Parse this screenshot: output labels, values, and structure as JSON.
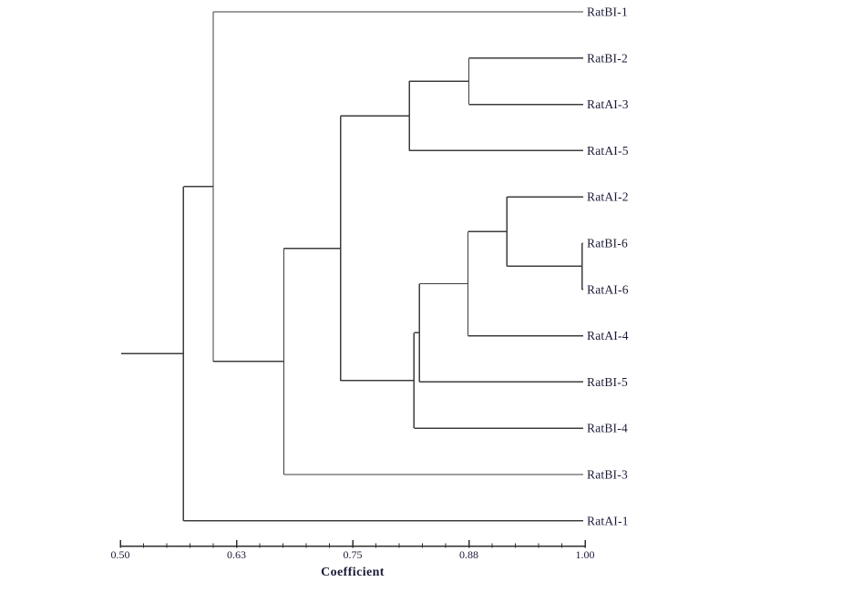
{
  "colors": {
    "background": "#ffffff",
    "branch": "#3d3d3d",
    "axis": "#2e2e2e",
    "text": "#1b1b38"
  },
  "chart_data": {
    "type": "dendrogram",
    "orientation": "horizontal, root at left, leaves at right",
    "title": "",
    "xlabel": "Coefficient",
    "axis": {
      "label": "Coefficient",
      "min": 0.5,
      "max": 1.0,
      "major_ticks": [
        {
          "value": 0.5,
          "label": "0.50"
        },
        {
          "value": 0.625,
          "label": "0.63"
        },
        {
          "value": 0.75,
          "label": "0.75"
        },
        {
          "value": 0.875,
          "label": "0.88"
        },
        {
          "value": 1.0,
          "label": "1.00"
        }
      ],
      "minor_tick_step": 0.025,
      "grid": false
    },
    "leaves_top_to_bottom": [
      "RatBI-1",
      "RatBI-2",
      "RatAI-3",
      "RatAI-5",
      "RatAI-2",
      "RatBI-6",
      "RatAI-6",
      "RatAI-4",
      "RatBI-5",
      "RatBI-4",
      "RatBI-3",
      "RatAI-1"
    ],
    "leaf_tip_coefficient": 0.998,
    "root_start_coefficient": 0.501,
    "tree": {
      "coefficient": 0.568,
      "children": [
        {
          "coefficient": 0.6,
          "children": [
            {
              "leaf": "RatBI-1"
            },
            {
              "coefficient": 0.676,
              "children": [
                {
                  "coefficient": 0.737,
                  "children": [
                    {
                      "coefficient": 0.811,
                      "children": [
                        {
                          "coefficient": 0.875,
                          "children": [
                            {
                              "leaf": "RatBI-2"
                            },
                            {
                              "leaf": "RatAI-3"
                            }
                          ]
                        },
                        {
                          "leaf": "RatAI-5"
                        }
                      ]
                    },
                    {
                      "coefficient": 0.816,
                      "children": [
                        {
                          "coefficient": 0.822,
                          "children": [
                            {
                              "coefficient": 0.874,
                              "children": [
                                {
                                  "coefficient": 0.916,
                                  "children": [
                                    {
                                      "leaf": "RatAI-2"
                                    },
                                    {
                                      "coefficient": 0.997,
                                      "children": [
                                        {
                                          "leaf": "RatBI-6"
                                        },
                                        {
                                          "leaf": "RatAI-6"
                                        }
                                      ]
                                    }
                                  ]
                                },
                                {
                                  "leaf": "RatAI-4"
                                }
                              ]
                            },
                            {
                              "leaf": "RatBI-5"
                            }
                          ]
                        },
                        {
                          "leaf": "RatBI-4"
                        }
                      ]
                    }
                  ]
                },
                {
                  "leaf": "RatBI-3"
                }
              ]
            }
          ]
        },
        {
          "leaf": "RatAI-1"
        }
      ]
    }
  }
}
